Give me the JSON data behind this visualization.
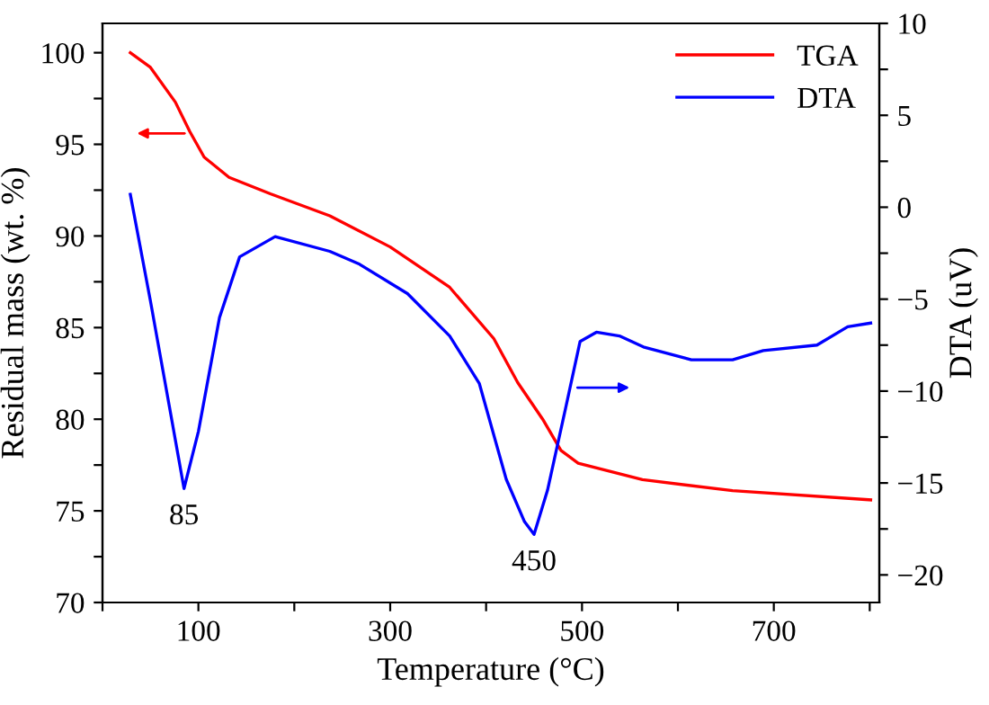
{
  "chart_data": {
    "type": "line",
    "xlabel": "Temperature (°C)",
    "ylabel": "Residual mass (wt. %)",
    "y2label": "DTA (uV)",
    "xlim": [
      0,
      810
    ],
    "xticks": [
      {
        "value": 0,
        "label": null
      },
      100,
      {
        "value": 200,
        "label": null
      },
      300,
      {
        "value": 400,
        "label": null
      },
      500,
      {
        "value": 600,
        "label": null
      },
      700,
      {
        "value": 800,
        "label": null
      }
    ],
    "ylim": [
      70,
      101.6
    ],
    "yticks": [
      70,
      {
        "value": 72.5,
        "label": null
      },
      75,
      {
        "value": 77.5,
        "label": null
      },
      80,
      {
        "value": 82.5,
        "label": null
      },
      85,
      {
        "value": 87.5,
        "label": null
      },
      90,
      {
        "value": 92.5,
        "label": null
      },
      95,
      {
        "value": 97.5,
        "label": null
      },
      100
    ],
    "y2lim": [
      -21.5,
      10
    ],
    "y2ticks": [
      -20,
      {
        "value": -17.5,
        "label": null
      },
      -15,
      {
        "value": -12.5,
        "label": null
      },
      -10,
      {
        "value": -7.5,
        "label": null
      },
      -5,
      {
        "value": -2.5,
        "label": null
      },
      0,
      {
        "value": 2.5,
        "label": null
      },
      5,
      {
        "value": 7.5,
        "label": null
      },
      10
    ],
    "grid": false,
    "legend": "top right",
    "marker": "none",
    "line_style": "solid",
    "annotations": [
      "85",
      "450"
    ],
    "series": [
      {
        "name": "TGA",
        "color": "#ff0000",
        "x": [
          29,
          50,
          76,
          91,
          106,
          132,
          175,
          237,
          300,
          362,
          408,
          433,
          459,
          478,
          496,
          563,
          657,
          801
        ],
        "values": [
          100,
          99.2,
          97.3,
          95.7,
          94.3,
          93.2,
          92.3,
          91.1,
          89.4,
          87.2,
          84.4,
          82,
          80,
          78.3,
          77.6,
          76.7,
          76.1,
          75.6
        ]
      },
      {
        "name": "DTA",
        "color": "#0000ff",
        "axis": "y2",
        "x": [
          29,
          50,
          72,
          85,
          100,
          122,
          143,
          180,
          237,
          268,
          318,
          362,
          393,
          421,
          440,
          450,
          464,
          483,
          498,
          515,
          539,
          564,
          614,
          657,
          689,
          745,
          777,
          801
        ],
        "values": [
          0.7,
          -5.1,
          -11.5,
          -15.3,
          -12.2,
          -6.0,
          -2.7,
          -1.6,
          -2.4,
          -3.1,
          -4.7,
          -7.0,
          -9.6,
          -14.8,
          -17.1,
          -17.8,
          -15.4,
          -10.9,
          -7.3,
          -6.8,
          -7.0,
          -7.6,
          -8.3,
          -8.3,
          -7.8,
          -7.5,
          -6.5,
          -6.3
        ]
      }
    ]
  }
}
